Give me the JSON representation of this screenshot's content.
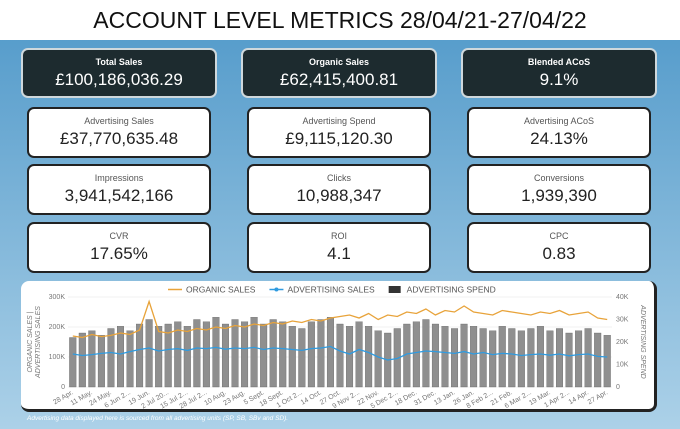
{
  "header": {
    "title": "ACCOUNT LEVEL METRICS 28/04/21-27/04/22"
  },
  "headline": [
    {
      "label": "Total Sales",
      "value": "£100,186,036.29"
    },
    {
      "label": "Organic Sales",
      "value": "£62,415,400.81"
    },
    {
      "label": "Blended ACoS",
      "value": "9.1%"
    }
  ],
  "cards": [
    {
      "label": "Advertising Sales",
      "value": "£37,770,635.48"
    },
    {
      "label": "Advertising Spend",
      "value": "£9,115,120.30"
    },
    {
      "label": "Advertising ACoS",
      "value": "24.13%"
    },
    {
      "label": "Impressions",
      "value": "3,941,542,166"
    },
    {
      "label": "Clicks",
      "value": "10,988,347"
    },
    {
      "label": "Conversions",
      "value": "1,939,390"
    },
    {
      "label": "CVR",
      "value": "17.65%"
    },
    {
      "label": "ROI",
      "value": "4.1"
    },
    {
      "label": "CPC",
      "value": "0.83"
    }
  ],
  "chart_data": {
    "type": "combo",
    "y_label": [
      "ORGANIC SALES |",
      "ADVERTISING SALES"
    ],
    "y2_label": "ADVERTISING SPEND",
    "categories": [
      "28 Apr.",
      null,
      "11 May.",
      null,
      "24 May.",
      null,
      "6 Jun 2...",
      null,
      "19 Jun.",
      null,
      "2 Jul 20...",
      null,
      "15 Jul 2...",
      null,
      "28 Jul 2...",
      null,
      "10 Aug.",
      null,
      "23 Aug.",
      null,
      "5 Sept.",
      null,
      "18 Sept.",
      null,
      "1 Oct 2...",
      null,
      "14 Oct.",
      null,
      "27 Oct.",
      null,
      "9 Nov 2...",
      null,
      "22 Nov.",
      null,
      "5 Dec 2...",
      null,
      "18 Dec.",
      null,
      "31 Dec.",
      null,
      "13 Jan.",
      null,
      "26 Jan.",
      null,
      "8 Feb 2...",
      null,
      "21 Feb.",
      null,
      "6 Mar 2...",
      null,
      "19 Mar.",
      null,
      "1 Apr 2...",
      null,
      "14 Apr.",
      null,
      "27 Apr."
    ],
    "series": [
      {
        "name": "ORGANIC SALES",
        "type": "line",
        "color": "#e8a33a",
        "values": [
          170000,
          165000,
          175000,
          168000,
          172000,
          180000,
          175000,
          190000,
          285000,
          185000,
          180000,
          190000,
          185000,
          195000,
          190000,
          200000,
          195000,
          205000,
          200000,
          210000,
          205000,
          215000,
          210000,
          220000,
          215000,
          225000,
          220000,
          230000,
          235000,
          240000,
          230000,
          245000,
          225000,
          240000,
          235000,
          250000,
          245000,
          260000,
          240000,
          255000,
          250000,
          270000,
          250000,
          245000,
          240000,
          255000,
          250000,
          245000,
          240000,
          250000,
          245000,
          255000,
          240000,
          245000,
          250000,
          230000,
          225000
        ]
      },
      {
        "name": "ADVERTISING SALES",
        "type": "line",
        "color": "#2f9be0",
        "values": [
          110000,
          105000,
          108000,
          112000,
          115000,
          110000,
          118000,
          125000,
          130000,
          120000,
          125000,
          128000,
          122000,
          130000,
          128000,
          132000,
          126000,
          130000,
          128000,
          132000,
          125000,
          130000,
          128000,
          125000,
          122000,
          128000,
          130000,
          135000,
          120000,
          110000,
          125000,
          115000,
          100000,
          90000,
          95000,
          110000,
          115000,
          120000,
          118000,
          115000,
          112000,
          118000,
          110000,
          115000,
          108000,
          112000,
          110000,
          105000,
          108000,
          110000,
          106000,
          110000,
          104000,
          108000,
          110000,
          102000,
          100000
        ]
      },
      {
        "name": "ADVERTISING SPEND",
        "type": "bar",
        "axis": "y2",
        "color": "#8f8f8f",
        "values": [
          22000,
          24000,
          25000,
          23000,
          26000,
          27000,
          25000,
          28000,
          30000,
          27000,
          28000,
          29000,
          27000,
          30000,
          29000,
          31000,
          28000,
          30000,
          29000,
          31000,
          28000,
          30000,
          29000,
          27000,
          26000,
          29000,
          30000,
          31000,
          28000,
          27000,
          29000,
          27000,
          25000,
          24000,
          26000,
          28000,
          29000,
          30000,
          28000,
          27000,
          26000,
          28000,
          27000,
          26000,
          25000,
          27000,
          26000,
          25000,
          26000,
          27000,
          25000,
          26000,
          24000,
          25000,
          26000,
          24000,
          23000
        ]
      }
    ],
    "ylim": [
      0,
      300000
    ],
    "yticks": [
      0,
      {
        "value": 100000,
        "label": "100K"
      },
      {
        "value": 200000,
        "label": "200K"
      },
      {
        "value": 300000,
        "label": "300K"
      }
    ],
    "y2lim": [
      0,
      40000
    ],
    "y2ticks": [
      0,
      {
        "value": 10000,
        "label": "10K"
      },
      {
        "value": 20000,
        "label": "20K"
      },
      {
        "value": 30000,
        "label": "30K"
      },
      {
        "value": 40000,
        "label": "40K"
      }
    ],
    "grid": true
  },
  "footnote": "Advertising data displayed here is sourced from all advertising units (SP, SB, SBv and SD)."
}
